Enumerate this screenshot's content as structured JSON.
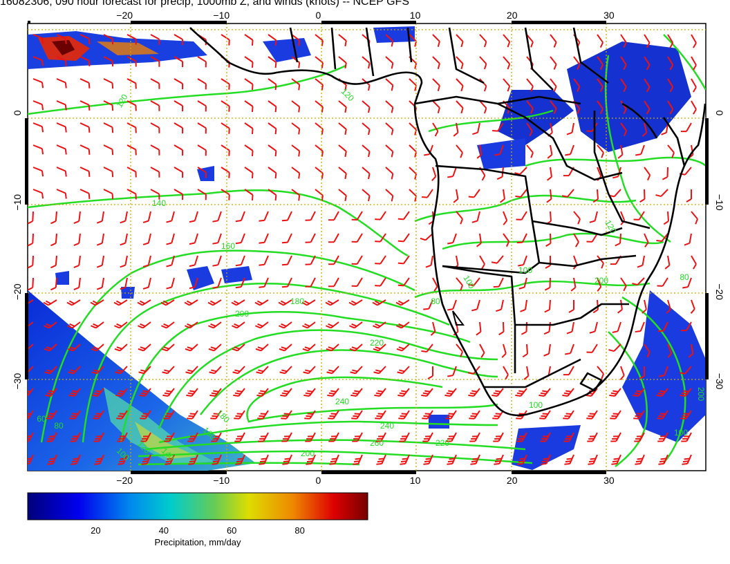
{
  "title": "16082306, 090 hour forecast for precip, 1000mb Z, and winds (knots) -- NCEP GFS",
  "chart_data": {
    "type": "map",
    "x_ticks": [
      "−20",
      "−10",
      "0",
      "10",
      "20",
      "30"
    ],
    "x_tick_values": [
      -20,
      -10,
      0,
      10,
      20,
      30
    ],
    "y_ticks": [
      "0",
      "−10",
      "−20",
      "−30"
    ],
    "y_tick_values": [
      0,
      -10,
      -20,
      -30
    ],
    "xlim": [
      -30,
      40
    ],
    "ylim": [
      -40,
      10
    ],
    "contour_labels": [
      "120",
      "120",
      "140",
      "160",
      "180",
      "200",
      "220",
      "240",
      "240",
      "260",
      "220",
      "200",
      "180",
      "160",
      "140",
      "120",
      "100",
      "80",
      "100",
      "80",
      "100",
      "120",
      "60",
      "80",
      "200",
      "200",
      "100",
      "100"
    ],
    "colorbar": {
      "label": "Precipitation, mm/day",
      "ticks": [
        "20",
        "40",
        "60",
        "80"
      ],
      "tick_values": [
        20,
        40,
        60,
        80
      ],
      "range": [
        0,
        100
      ]
    },
    "colors": {
      "contour": "#22dd22",
      "wind_barb": "#ee1111",
      "grid": "#ccaa00",
      "coast": "#000000"
    }
  }
}
